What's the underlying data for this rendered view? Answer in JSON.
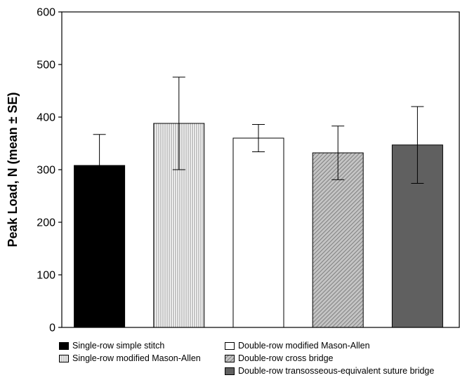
{
  "chart_data": {
    "type": "bar",
    "ylabel": "Peak Load, N (mean ± SE)",
    "xlabel": "",
    "ylim": [
      0,
      600
    ],
    "yticks": [
      0,
      100,
      200,
      300,
      400,
      500,
      600
    ],
    "grid": false,
    "legend_position": "bottom",
    "series": [
      {
        "name": "Single-row simple stitch",
        "value": 308,
        "error": 59,
        "fill": "solid",
        "color": "#000000"
      },
      {
        "name": "Single-row modified Mason-Allen",
        "value": 388,
        "error": 88,
        "fill": "vertical-lines",
        "color": "#b0b0b0"
      },
      {
        "name": "Double-row modified Mason-Allen",
        "value": 360,
        "error": 26,
        "fill": "solid",
        "color": "#ffffff"
      },
      {
        "name": "Double-row cross bridge",
        "value": 332,
        "error": 51,
        "fill": "diagonal-lines",
        "color": "#9a9a9a"
      },
      {
        "name": "Double-row transosseous-equivalent suture bridge",
        "value": 347,
        "error": 73,
        "fill": "solid",
        "color": "#606060"
      }
    ]
  }
}
